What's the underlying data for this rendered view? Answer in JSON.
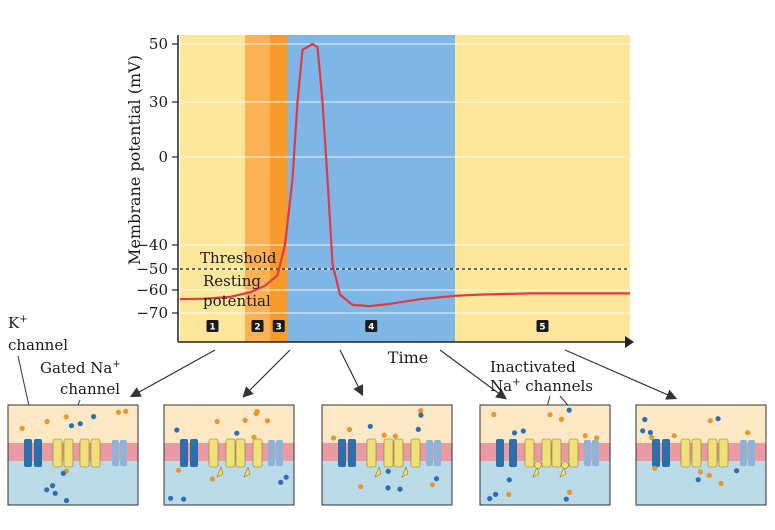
{
  "chart_data": {
    "type": "line",
    "title": "",
    "xlabel": "Time",
    "ylabel": "Membrane potential (mV)",
    "ylim": [
      -75,
      52
    ],
    "yticks": [
      50,
      30,
      0,
      -40,
      -50,
      -60,
      -70
    ],
    "grid": true,
    "series": [
      {
        "x": [
          0,
          0.5,
          1.0,
          1.4,
          1.7,
          1.95,
          2.1,
          2.25,
          2.35,
          2.45,
          2.65,
          2.75,
          2.85,
          2.95,
          3.05,
          3.2,
          3.45,
          3.8,
          4.2,
          4.8,
          5.5,
          6.0,
          7.0,
          8.0,
          9.0
        ],
        "y": [
          -64,
          -63.8,
          -63,
          -61,
          -58,
          -53,
          -40,
          -10,
          30,
          48,
          50,
          49,
          30,
          -10,
          -48,
          -62,
          -66.5,
          -67,
          -66,
          -64,
          -62.5,
          -62,
          -61.5,
          -61.5,
          -61.5
        ]
      }
    ],
    "reference_lines": [
      {
        "y": -50,
        "style": "dashed"
      }
    ],
    "phases": [
      {
        "label": "1",
        "x_start": 0,
        "x_end": 1.3,
        "color": "#fde79a"
      },
      {
        "label": "2",
        "x_start": 1.3,
        "x_end": 1.8,
        "color": "#fbb255"
      },
      {
        "label": "3",
        "x_start": 1.8,
        "x_end": 2.15,
        "color": "#f69a2b"
      },
      {
        "label": "4",
        "x_start": 2.15,
        "x_end": 5.5,
        "color": "#7eb6e6"
      },
      {
        "label": "5",
        "x_start": 5.5,
        "x_end": 9.0,
        "color": "#fde79a"
      }
    ],
    "line_color": "#e03a4a"
  },
  "annotations": {
    "threshold": "Threshold",
    "resting_1": "Resting",
    "resting_2": "potential",
    "k_channel": "K+",
    "k_channel_2": "channel",
    "gated_na": "Gated Na+",
    "gated_na_2": "channel",
    "inactivated_1": "Inactivated",
    "inactivated_2": "Na+ channels"
  },
  "colors": {
    "extracellular": "#fce8c4",
    "intracellular": "#bcdbe8",
    "membrane": "#e99aa2",
    "k_channel": "#2f6fa8",
    "na_channel": "#f0e07a",
    "ion_na": "#e8962e",
    "ion_k": "#2d6fb7"
  }
}
